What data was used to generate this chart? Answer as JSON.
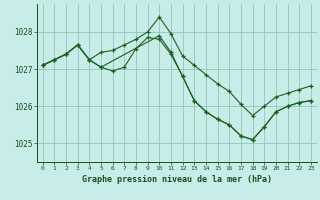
{
  "title": "Graphe pression niveau de la mer (hPa)",
  "bg_color": "#c8ece8",
  "grid_color": "#90c8b8",
  "line_color": "#1a6020",
  "ylim": [
    1024.5,
    1028.75
  ],
  "xlim": [
    -0.5,
    23.5
  ],
  "ytick_vals": [
    1025,
    1026,
    1027,
    1028
  ],
  "xtick_vals": [
    0,
    1,
    2,
    3,
    4,
    5,
    6,
    7,
    8,
    9,
    10,
    11,
    12,
    13,
    14,
    15,
    16,
    17,
    18,
    19,
    20,
    21,
    22,
    23
  ],
  "series1_x": [
    0,
    1,
    2,
    3,
    4,
    5,
    6,
    7,
    8,
    9,
    10,
    11,
    12,
    13,
    14,
    15,
    16,
    17,
    18,
    19,
    20,
    21,
    22,
    23
  ],
  "series1_y": [
    1027.1,
    1027.25,
    1027.4,
    1027.65,
    1027.25,
    1027.45,
    1027.5,
    1027.65,
    1027.8,
    1028.0,
    1028.4,
    1027.95,
    1027.35,
    1027.1,
    1026.85,
    1026.6,
    1026.4,
    1026.05,
    1025.75,
    1026.0,
    1026.25,
    1026.35,
    1026.45,
    1026.55
  ],
  "series2_x": [
    0,
    1,
    2,
    3,
    4,
    5,
    6,
    7,
    8,
    9,
    10,
    11,
    12,
    13,
    14,
    15,
    16,
    17,
    18,
    19,
    20,
    21,
    22,
    23
  ],
  "series2_y": [
    1027.1,
    1027.25,
    1027.4,
    1027.65,
    1027.25,
    1027.05,
    1026.95,
    1027.05,
    1027.55,
    1027.85,
    1027.8,
    1027.4,
    1026.8,
    1026.15,
    1025.85,
    1025.65,
    1025.5,
    1025.2,
    1025.1,
    1025.45,
    1025.85,
    1026.0,
    1026.1,
    1026.15
  ],
  "series3_x": [
    0,
    1,
    2,
    3,
    4,
    5,
    10,
    11,
    12,
    13,
    14,
    15,
    16,
    17,
    18,
    19,
    20,
    21,
    22,
    23
  ],
  "series3_y": [
    1027.1,
    1027.25,
    1027.4,
    1027.65,
    1027.25,
    1027.05,
    1027.9,
    1027.45,
    1026.8,
    1026.15,
    1025.85,
    1025.65,
    1025.5,
    1025.2,
    1025.1,
    1025.45,
    1025.85,
    1026.0,
    1026.1,
    1026.15
  ]
}
